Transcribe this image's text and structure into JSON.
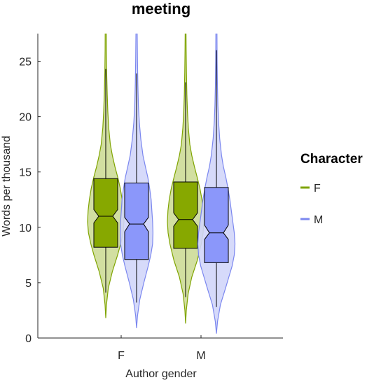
{
  "chart_data": {
    "type": "violin",
    "title": "meeting",
    "xlabel": "Author gender",
    "ylabel": "Words per thousand",
    "categories": [
      "F",
      "M"
    ],
    "ylim": [
      0,
      27.5
    ],
    "yticks": [
      0,
      5,
      10,
      15,
      20,
      25
    ],
    "grid": false,
    "legend": {
      "title": "Character",
      "placement": "right",
      "entries": [
        "F",
        "M"
      ]
    },
    "series": [
      {
        "name": "F",
        "color": "#7fa400",
        "fill": "#cddc97",
        "box_fill": "#87a800",
        "groups": [
          {
            "category": "F",
            "q1": 8.2,
            "median": 11.0,
            "q3": 14.4,
            "notch_low": 10.4,
            "notch_high": 11.6,
            "whisker_low": 4.1,
            "whisker_high": 24.3,
            "violin_min": 1.8,
            "violin_max": 27.5,
            "density": [
              [
                1.8,
                0.0
              ],
              [
                3,
                0.04
              ],
              [
                4.5,
                0.14
              ],
              [
                6,
                0.36
              ],
              [
                7.5,
                0.65
              ],
              [
                8.5,
                0.82
              ],
              [
                9.5,
                0.95
              ],
              [
                10.5,
                1.0
              ],
              [
                11.5,
                0.97
              ],
              [
                12.5,
                0.9
              ],
              [
                13.5,
                0.8
              ],
              [
                14.5,
                0.66
              ],
              [
                15.5,
                0.5
              ],
              [
                16.5,
                0.36
              ],
              [
                17.5,
                0.25
              ],
              [
                19,
                0.16
              ],
              [
                20.5,
                0.11
              ],
              [
                22,
                0.08
              ],
              [
                24,
                0.05
              ],
              [
                26,
                0.035
              ],
              [
                27.5,
                0.03
              ]
            ]
          },
          {
            "category": "M",
            "q1": 8.1,
            "median": 10.7,
            "q3": 14.1,
            "notch_low": 10.1,
            "notch_high": 11.3,
            "whisker_low": 3.7,
            "whisker_high": 23.1,
            "violin_min": 1.3,
            "violin_max": 27.5,
            "density": [
              [
                1.3,
                0.0
              ],
              [
                2.5,
                0.04
              ],
              [
                4,
                0.14
              ],
              [
                5.5,
                0.34
              ],
              [
                7,
                0.64
              ],
              [
                8.5,
                0.86
              ],
              [
                9.5,
                0.96
              ],
              [
                10.5,
                1.0
              ],
              [
                11.5,
                0.97
              ],
              [
                12.5,
                0.9
              ],
              [
                13.5,
                0.79
              ],
              [
                14.5,
                0.64
              ],
              [
                15.5,
                0.48
              ],
              [
                16.5,
                0.34
              ],
              [
                17.5,
                0.23
              ],
              [
                19,
                0.15
              ],
              [
                20.5,
                0.1
              ],
              [
                22,
                0.07
              ],
              [
                24,
                0.045
              ],
              [
                26,
                0.03
              ],
              [
                27.5,
                0.025
              ]
            ]
          }
        ]
      },
      {
        "name": "M",
        "color": "#7b87ef",
        "fill": "#d2d6fa",
        "box_fill": "#8b97fa",
        "groups": [
          {
            "category": "F",
            "q1": 7.1,
            "median": 10.3,
            "q3": 14.0,
            "notch_low": 9.6,
            "notch_high": 10.9,
            "whisker_low": 3.2,
            "whisker_high": 23.9,
            "violin_min": 0.9,
            "violin_max": 27.5,
            "density": [
              [
                0.9,
                0.0
              ],
              [
                2,
                0.05
              ],
              [
                3.5,
                0.18
              ],
              [
                5,
                0.4
              ],
              [
                6.5,
                0.64
              ],
              [
                7.5,
                0.78
              ],
              [
                8.5,
                0.88
              ],
              [
                9.5,
                0.9
              ],
              [
                10.5,
                0.88
              ],
              [
                11.5,
                0.84
              ],
              [
                12.5,
                0.8
              ],
              [
                13.5,
                0.72
              ],
              [
                14.5,
                0.62
              ],
              [
                15.5,
                0.48
              ],
              [
                16.5,
                0.35
              ],
              [
                18,
                0.23
              ],
              [
                19.5,
                0.15
              ],
              [
                21,
                0.1
              ],
              [
                23,
                0.07
              ],
              [
                25,
                0.05
              ],
              [
                27.5,
                0.035
              ]
            ]
          },
          {
            "category": "M",
            "q1": 6.8,
            "median": 9.5,
            "q3": 13.6,
            "notch_low": 8.9,
            "notch_high": 10.2,
            "whisker_low": 2.8,
            "whisker_high": 26.0,
            "violin_min": 0.4,
            "violin_max": 27.5,
            "density": [
              [
                0.4,
                0.0
              ],
              [
                1.5,
                0.06
              ],
              [
                3,
                0.22
              ],
              [
                4.5,
                0.5
              ],
              [
                5.5,
                0.68
              ],
              [
                6.5,
                0.86
              ],
              [
                7.5,
                0.98
              ],
              [
                8.5,
                1.02
              ],
              [
                9.5,
                0.98
              ],
              [
                10.5,
                0.9
              ],
              [
                11.5,
                0.82
              ],
              [
                12.5,
                0.74
              ],
              [
                13.5,
                0.64
              ],
              [
                14.5,
                0.52
              ],
              [
                15.5,
                0.38
              ],
              [
                16.5,
                0.28
              ],
              [
                18,
                0.18
              ],
              [
                19.5,
                0.12
              ],
              [
                21,
                0.08
              ],
              [
                23,
                0.055
              ],
              [
                25,
                0.04
              ],
              [
                27.5,
                0.03
              ]
            ]
          }
        ]
      }
    ]
  }
}
